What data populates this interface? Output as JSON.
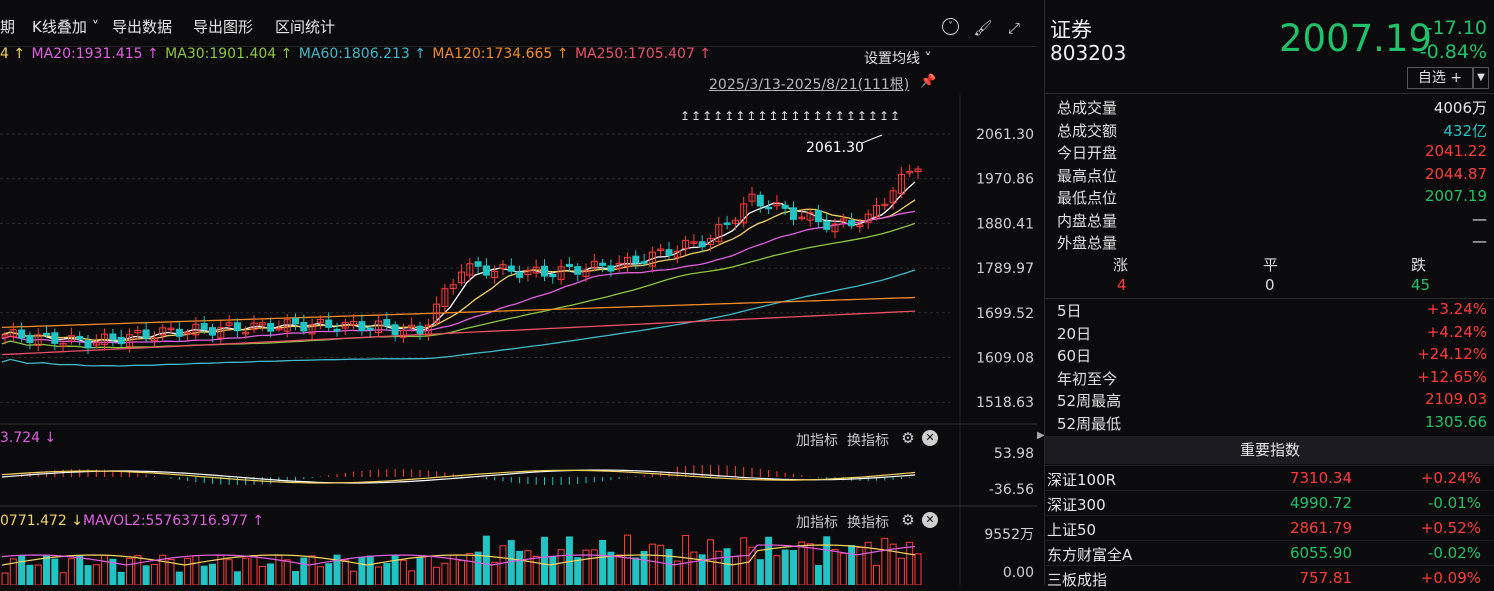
{
  "toolbar": {
    "period_partial": "期",
    "kline_overlay": "K线叠加",
    "export_data": "导出数据",
    "export_chart": "导出图形",
    "range_stats": "区间统计"
  },
  "ma": {
    "prefix": "4 ↑",
    "ma20": "MA20:1931.415 ↑",
    "ma30": "MA30:1901.404 ↑",
    "ma60": "MA60:1806.213 ↑",
    "ma120": "MA120:1734.665 ↑",
    "ma250": "MA250:1705.407 ↑",
    "settings": "设置均线",
    "date_range": "2025/3/13-2025/8/21(111根)",
    "max_marker": "2061.30",
    "arrows": "↥↥↥↥↥↥↥↥↥↥↥↥↥↥↥↥↥↥↥↥"
  },
  "price_axis": [
    "2061.30",
    "1970.86",
    "1880.41",
    "1789.97",
    "1699.52",
    "1609.08",
    "1518.63"
  ],
  "macd": {
    "label": "3.724 ↓",
    "top": "53.98",
    "bottom": "-36.56"
  },
  "vol": {
    "label1": "0771.472 ↓",
    "label2": "MAVOL2:55763716.977 ↑",
    "top": "9552万",
    "bottom": "0.00"
  },
  "sub_controls": {
    "add_indicator": "加指标",
    "swap_indicator": "换指标"
  },
  "quote": {
    "name": "证券",
    "code": "803203",
    "price": "2007.19",
    "change": "-17.10",
    "change_pct": "-0.84%",
    "watchlist": "自选 +"
  },
  "stats": [
    {
      "k": "总成交量",
      "v": "4006万",
      "c": "white"
    },
    {
      "k": "总成交额",
      "v": "432亿",
      "c": "cyan"
    },
    {
      "k": "今日开盘",
      "v": "2041.22",
      "c": "red"
    },
    {
      "k": "最高点位",
      "v": "2044.87",
      "c": "red"
    },
    {
      "k": "最低点位",
      "v": "2007.19",
      "c": "green"
    },
    {
      "k": "内盘总量",
      "v": "—",
      "c": "white"
    },
    {
      "k": "外盘总量",
      "v": "—",
      "c": "white"
    }
  ],
  "breadth": {
    "up_label": "涨",
    "flat_label": "平",
    "down_label": "跌",
    "up": "4",
    "flat": "0",
    "down": "45"
  },
  "periods": [
    {
      "k": "5日",
      "v": "+3.24%"
    },
    {
      "k": "20日",
      "v": "+4.24%"
    },
    {
      "k": "60日",
      "v": "+24.12%"
    },
    {
      "k": "年初至今",
      "v": "+12.65%"
    },
    {
      "k": "52周最高",
      "v": "2109.03"
    },
    {
      "k": "52周最低",
      "v": "1305.66"
    }
  ],
  "indices_title": "重要指数",
  "indices": [
    {
      "name": "深证100R",
      "value": "7310.34",
      "pct": "+0.24%",
      "vc": "red",
      "pc": "red"
    },
    {
      "name": "深证300",
      "value": "4990.72",
      "pct": "-0.01%",
      "vc": "green",
      "pc": "green"
    },
    {
      "name": "上证50",
      "value": "2861.79",
      "pct": "+0.52%",
      "vc": "red",
      "pc": "red"
    },
    {
      "name": "东方财富全A",
      "value": "6055.90",
      "pct": "-0.02%",
      "vc": "green",
      "pc": "green"
    },
    {
      "name": "三板成指",
      "value": "757.81",
      "pct": "+0.09%",
      "vc": "red",
      "pc": "red"
    }
  ],
  "colors": {
    "up": "#ff3b3b",
    "down": "#21c3c3",
    "ma5": "#ffffff",
    "ma10": "#f4d35e",
    "ma20": "#e05ee0",
    "ma30": "#8cc63f",
    "ma60": "#3fb8c9",
    "ma120": "#f08a24",
    "ma250": "#e8506a"
  }
}
